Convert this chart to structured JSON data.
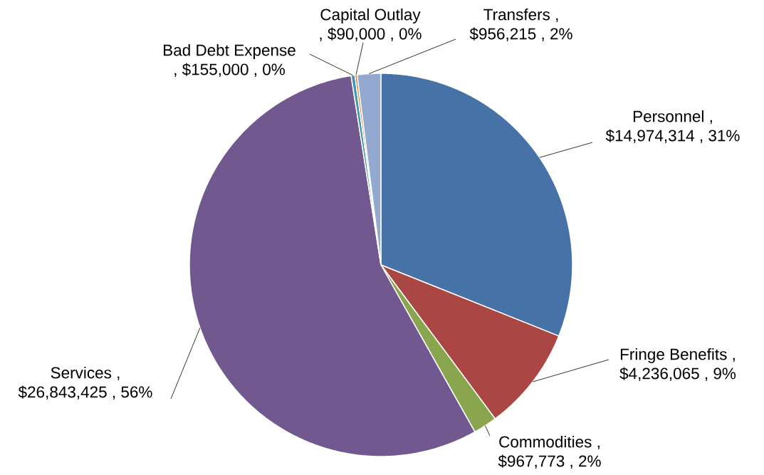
{
  "chart_data": {
    "type": "pie",
    "categories": [
      "Personnel",
      "Fringe Benefits",
      "Commodities",
      "Services",
      "Bad Debt Expense",
      "Capital Outlay",
      "Transfers"
    ],
    "values": [
      14974314,
      4236065,
      967773,
      26843425,
      155000,
      90000,
      956215
    ],
    "value_labels": [
      ", $14,974,314 , 31%",
      ", $4,236,065 , 9%",
      ", $967,773 , 2%",
      ", $26,843,425 , 56%",
      ", $155,000 , 0%",
      ", $90,000 , 0%",
      ", $956,215 , 2%"
    ],
    "colors": [
      "#4672a8",
      "#aa4644",
      "#89a54e",
      "#71588f",
      "#4198af",
      "#db843d",
      "#93a9cf"
    ]
  }
}
